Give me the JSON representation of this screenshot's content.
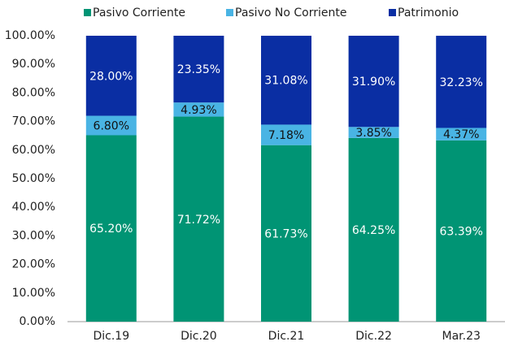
{
  "chart_data": {
    "type": "stacked_bar",
    "categories": [
      "Dic.19",
      "Dic.20",
      "Dic.21",
      "Dic.22",
      "Mar.23"
    ],
    "series": [
      {
        "name": "Pasivo Corriente",
        "color": "#009474",
        "values": [
          65.2,
          71.72,
          61.73,
          64.25,
          63.39
        ],
        "value_labels": [
          "65.20%",
          "71.72%",
          "61.73%",
          "64.25%",
          "63.39%"
        ]
      },
      {
        "name": "Pasivo No Corriente",
        "color": "#49b4e4",
        "values": [
          6.8,
          4.93,
          7.18,
          3.85,
          4.37
        ],
        "value_labels": [
          "6.80%",
          "4.93%",
          "7.18%",
          "3.85%",
          "4.37%"
        ]
      },
      {
        "name": "Patrimonio",
        "color": "#0a2ea3",
        "values": [
          28,
          23.35,
          31.08,
          31.9,
          32.23
        ],
        "value_labels": [
          "28.00%",
          "23.35%",
          "31.08%",
          "31.90%",
          "32.23%"
        ]
      }
    ],
    "ylim": [
      0,
      100
    ],
    "yticks": [
      {
        "value": 0,
        "label": "0.00%"
      },
      {
        "value": 10,
        "label": "10.00%"
      },
      {
        "value": 20,
        "label": "20.00%"
      },
      {
        "value": 30,
        "label": "30.00%"
      },
      {
        "value": 40,
        "label": "40.00%"
      },
      {
        "value": 50,
        "label": "50.00%"
      },
      {
        "value": 60,
        "label": "60.00%"
      },
      {
        "value": 70,
        "label": "70.00%"
      },
      {
        "value": 80,
        "label": "80.00%"
      },
      {
        "value": 90,
        "label": "90.00%"
      },
      {
        "value": 100,
        "label": "100.00%"
      }
    ],
    "legend": "top"
  }
}
